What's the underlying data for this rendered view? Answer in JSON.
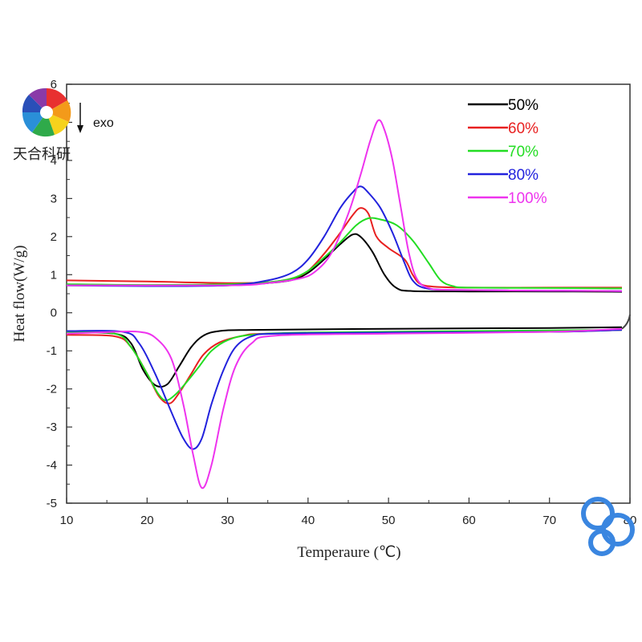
{
  "chart_data": {
    "type": "line",
    "xlabel": "Temperaure (℃)",
    "ylabel": "Heat flow(W/g)",
    "xlim": [
      10,
      80
    ],
    "ylim": [
      -5,
      6
    ],
    "x_ticks": [
      10,
      20,
      30,
      40,
      50,
      60,
      70,
      80
    ],
    "y_ticks": [
      -5,
      -4,
      -3,
      -2,
      -1,
      0,
      1,
      2,
      3,
      4,
      5,
      6
    ],
    "grid": false,
    "legend_position": "top-right",
    "annotation": "exo",
    "series": [
      {
        "name": "50%",
        "color": "#000000",
        "heating": [
          [
            10,
            0.72
          ],
          [
            20,
            0.72
          ],
          [
            30,
            0.72
          ],
          [
            35,
            0.78
          ],
          [
            38,
            0.86
          ],
          [
            40,
            1.05
          ],
          [
            42,
            1.4
          ],
          [
            44,
            1.8
          ],
          [
            45.5,
            2.05
          ],
          [
            46.5,
            2.0
          ],
          [
            48,
            1.6
          ],
          [
            49.5,
            1.0
          ],
          [
            51,
            0.65
          ],
          [
            53,
            0.57
          ],
          [
            60,
            0.56
          ],
          [
            70,
            0.56
          ],
          [
            79,
            0.55
          ]
        ],
        "cooling": [
          [
            10,
            -0.5
          ],
          [
            16,
            -0.55
          ],
          [
            18,
            -0.8
          ],
          [
            19.5,
            -1.5
          ],
          [
            21,
            -1.9
          ],
          [
            22.5,
            -1.88
          ],
          [
            24,
            -1.4
          ],
          [
            25.5,
            -0.9
          ],
          [
            27,
            -0.6
          ],
          [
            29,
            -0.48
          ],
          [
            33,
            -0.45
          ],
          [
            50,
            -0.42
          ],
          [
            70,
            -0.4
          ],
          [
            79,
            -0.38
          ]
        ]
      },
      {
        "name": "60%",
        "color": "#e82020",
        "heating": [
          [
            10,
            0.85
          ],
          [
            20,
            0.82
          ],
          [
            30,
            0.78
          ],
          [
            35,
            0.8
          ],
          [
            38,
            0.9
          ],
          [
            40,
            1.1
          ],
          [
            42,
            1.55
          ],
          [
            44,
            2.1
          ],
          [
            45.5,
            2.55
          ],
          [
            46.5,
            2.75
          ],
          [
            47.5,
            2.6
          ],
          [
            48.5,
            2.0
          ],
          [
            50,
            1.7
          ],
          [
            52,
            1.4
          ],
          [
            53,
            1.0
          ],
          [
            54,
            0.75
          ],
          [
            56,
            0.68
          ],
          [
            60,
            0.66
          ],
          [
            70,
            0.66
          ],
          [
            79,
            0.66
          ]
        ],
        "cooling": [
          [
            10,
            -0.58
          ],
          [
            16,
            -0.62
          ],
          [
            18,
            -0.9
          ],
          [
            20,
            -1.6
          ],
          [
            21.5,
            -2.2
          ],
          [
            22.8,
            -2.38
          ],
          [
            24,
            -2.1
          ],
          [
            25.5,
            -1.6
          ],
          [
            27,
            -1.1
          ],
          [
            29,
            -0.78
          ],
          [
            32,
            -0.6
          ],
          [
            35,
            -0.55
          ],
          [
            50,
            -0.52
          ],
          [
            70,
            -0.5
          ],
          [
            79,
            -0.45
          ]
        ]
      },
      {
        "name": "70%",
        "color": "#22dd22",
        "heating": [
          [
            10,
            0.75
          ],
          [
            20,
            0.73
          ],
          [
            30,
            0.75
          ],
          [
            35,
            0.8
          ],
          [
            38,
            0.9
          ],
          [
            40,
            1.1
          ],
          [
            42,
            1.45
          ],
          [
            44,
            1.85
          ],
          [
            46,
            2.3
          ],
          [
            47.5,
            2.48
          ],
          [
            49,
            2.45
          ],
          [
            51,
            2.3
          ],
          [
            53,
            1.9
          ],
          [
            55,
            1.3
          ],
          [
            56.5,
            0.85
          ],
          [
            58,
            0.7
          ],
          [
            60,
            0.66
          ],
          [
            70,
            0.65
          ],
          [
            79,
            0.64
          ]
        ],
        "cooling": [
          [
            10,
            -0.5
          ],
          [
            16,
            -0.55
          ],
          [
            18,
            -0.9
          ],
          [
            20,
            -1.6
          ],
          [
            21.3,
            -2.1
          ],
          [
            22.3,
            -2.3
          ],
          [
            23.5,
            -2.15
          ],
          [
            25,
            -1.8
          ],
          [
            26.5,
            -1.4
          ],
          [
            28,
            -1.0
          ],
          [
            30,
            -0.72
          ],
          [
            33,
            -0.58
          ],
          [
            40,
            -0.52
          ],
          [
            60,
            -0.48
          ],
          [
            79,
            -0.45
          ]
        ]
      },
      {
        "name": "80%",
        "color": "#2222dd",
        "heating": [
          [
            10,
            0.72
          ],
          [
            20,
            0.7
          ],
          [
            30,
            0.72
          ],
          [
            35,
            0.85
          ],
          [
            38,
            1.05
          ],
          [
            40,
            1.4
          ],
          [
            42,
            2.0
          ],
          [
            44,
            2.75
          ],
          [
            45.5,
            3.15
          ],
          [
            46.5,
            3.32
          ],
          [
            47.5,
            3.15
          ],
          [
            49,
            2.75
          ],
          [
            50.5,
            2.1
          ],
          [
            52,
            1.3
          ],
          [
            53,
            0.85
          ],
          [
            54.5,
            0.65
          ],
          [
            58,
            0.6
          ],
          [
            70,
            0.58
          ],
          [
            79,
            0.57
          ]
        ],
        "cooling": [
          [
            10,
            -0.48
          ],
          [
            17,
            -0.5
          ],
          [
            19,
            -0.8
          ],
          [
            21,
            -1.6
          ],
          [
            23,
            -2.6
          ],
          [
            24.5,
            -3.3
          ],
          [
            25.7,
            -3.58
          ],
          [
            26.8,
            -3.3
          ],
          [
            28,
            -2.4
          ],
          [
            29.5,
            -1.5
          ],
          [
            31,
            -0.9
          ],
          [
            33,
            -0.62
          ],
          [
            36,
            -0.55
          ],
          [
            50,
            -0.52
          ],
          [
            70,
            -0.5
          ],
          [
            79,
            -0.45
          ]
        ]
      },
      {
        "name": "100%",
        "color": "#ee33ee",
        "heating": [
          [
            10,
            0.72
          ],
          [
            30,
            0.72
          ],
          [
            35,
            0.78
          ],
          [
            39,
            0.9
          ],
          [
            41,
            1.1
          ],
          [
            43,
            1.6
          ],
          [
            45,
            2.6
          ],
          [
            46.5,
            3.6
          ],
          [
            47.7,
            4.5
          ],
          [
            48.7,
            5.05
          ],
          [
            49.5,
            4.8
          ],
          [
            50.5,
            4.0
          ],
          [
            51.5,
            2.8
          ],
          [
            52.5,
            1.6
          ],
          [
            53.5,
            0.9
          ],
          [
            55,
            0.65
          ],
          [
            58,
            0.6
          ],
          [
            70,
            0.58
          ],
          [
            79,
            0.57
          ]
        ],
        "cooling": [
          [
            10,
            -0.55
          ],
          [
            16,
            -0.5
          ],
          [
            19,
            -0.5
          ],
          [
            21,
            -0.65
          ],
          [
            23,
            -1.2
          ],
          [
            24.5,
            -2.4
          ],
          [
            25.7,
            -3.7
          ],
          [
            26.8,
            -4.6
          ],
          [
            28,
            -4.0
          ],
          [
            29.5,
            -2.5
          ],
          [
            31,
            -1.4
          ],
          [
            33,
            -0.8
          ],
          [
            36,
            -0.6
          ],
          [
            50,
            -0.55
          ],
          [
            70,
            -0.5
          ],
          [
            79,
            -0.42
          ]
        ]
      }
    ]
  },
  "watermark": {
    "text": "天合科研"
  }
}
